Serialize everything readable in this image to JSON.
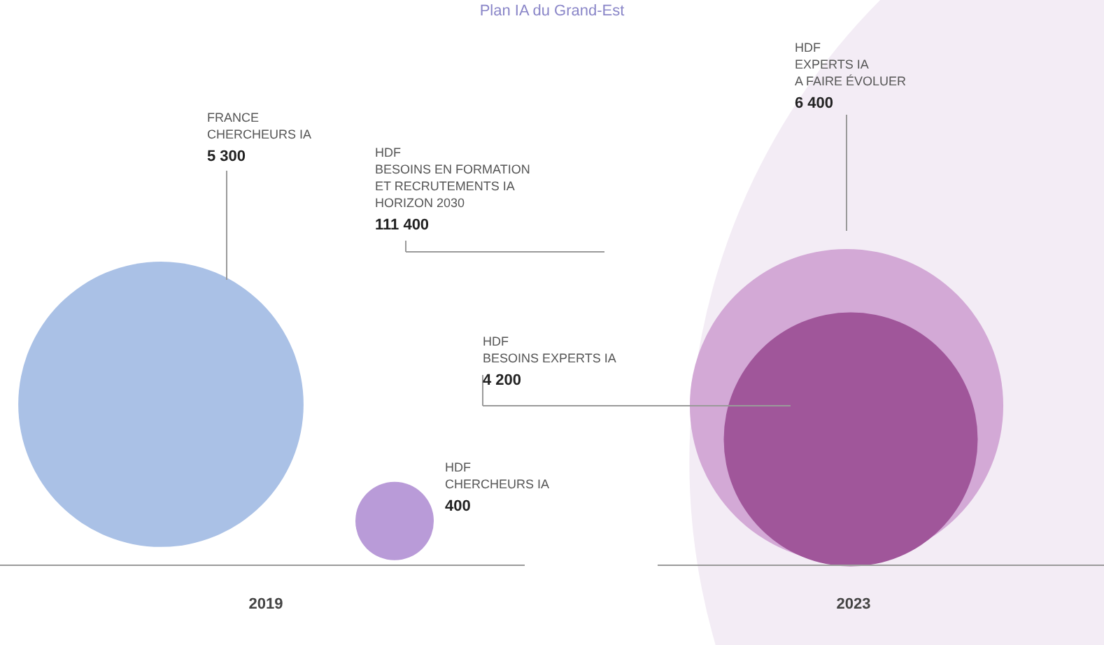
{
  "chart_data": {
    "type": "other",
    "annotations": [
      "Plan IA du Grand-Est",
      "2019",
      "2023"
    ],
    "categories": [
      "FRANCE\nCHERCHEURS IA",
      "HDF\nCHERCHEURS IA",
      "HDF\nBESOINS EN FORMATION\nET RECRUTEMENTS IA\nHORIZON 2030",
      "HDF\nEXPERTS IA\nA FAIRE ÉVOLUER",
      "HDF\nBESOINS EXPERTS IA"
    ],
    "values": [
      5300,
      400,
      111400,
      6400,
      4200
    ],
    "value_labels": [
      "5 300",
      "400",
      "111 400",
      "6 400",
      "4 200"
    ],
    "colors": [
      "#aac1e6",
      "#b99bd8",
      "#f3ecf5",
      "#d3a9d6",
      "#a0569a"
    ]
  }
}
